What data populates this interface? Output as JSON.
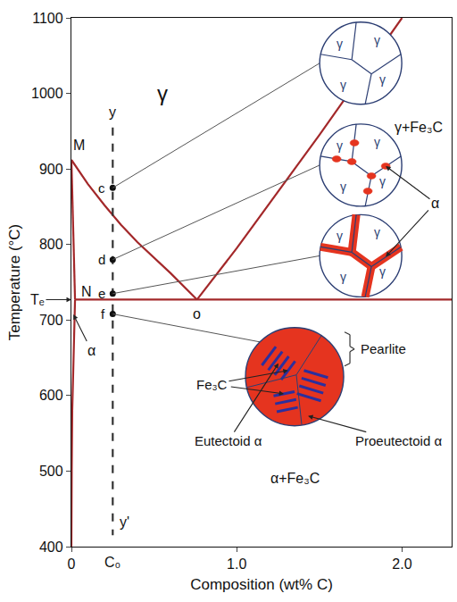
{
  "chart_data": {
    "type": "line",
    "x_label": "Composition (wt% C)",
    "y_label": "Temperature (°C)",
    "xlim": [
      0,
      2.3
    ],
    "ylim": [
      400,
      1100
    ],
    "xticks": [
      0,
      {
        "value": 1,
        "label": "1.0"
      },
      {
        "value": 2,
        "label": "2.0"
      }
    ],
    "yticks": [
      400,
      500,
      600,
      700,
      800,
      900,
      1000,
      1100
    ],
    "grid": false,
    "color": "#a3282a",
    "series": [
      {
        "x": [
          0,
          0.1,
          0.2,
          0.3,
          0.4,
          0.5,
          0.6,
          0.76
        ],
        "values": [
          912,
          880,
          852,
          826,
          803,
          782,
          762,
          727
        ]
      },
      {
        "x": [
          0.76,
          1.0,
          1.5,
          2.0
        ],
        "values": [
          727,
          795,
          945,
          1100
        ]
      },
      {
        "x": [
          0,
          0.022
        ],
        "values": [
          912,
          727
        ]
      },
      {
        "x": [
          0.022,
          0.012,
          0.005,
          0.002,
          0
        ],
        "values": [
          727,
          650,
          580,
          500,
          400
        ]
      },
      {
        "x": [
          0.022,
          2.3
        ],
        "values": [
          727,
          727
        ]
      },
      {
        "x": [
          0.25,
          0.25
        ],
        "values": [
          955,
          415
        ],
        "color": "#333333",
        "line_style": "dashed"
      }
    ],
    "points": {
      "x": [
        0.25,
        0.25,
        0.25,
        0.25
      ],
      "values": [
        875,
        780,
        735,
        708
      ],
      "color": "#111111",
      "marker": "circle",
      "labels": [
        "c",
        "d",
        "e",
        "f"
      ]
    },
    "annotations": [
      {
        "text": "γ",
        "x": 0.55,
        "y": 1000
      },
      {
        "text": "γ+Fe₃C",
        "x": 2.1,
        "y": 955
      },
      {
        "text": "α+Fe₃C",
        "x": 1.35,
        "y": 490
      },
      {
        "text": "M",
        "x": 0.045,
        "y": 932
      },
      {
        "text": "N",
        "x": 0.09,
        "y": 737
      },
      {
        "text": "o",
        "x": 0.76,
        "y": 708
      },
      {
        "text": "y",
        "x": 0.25,
        "y": 975
      },
      {
        "text": "y'",
        "x": 0.32,
        "y": 432
      }
    ],
    "te": {
      "text": "Tₑ",
      "y": 727
    },
    "c0": {
      "text": "C₀",
      "x": 0.25
    },
    "alpha_phase": {
      "text": "α",
      "x": 0.12,
      "y": 660
    },
    "microstructures": [
      {
        "x": 1.75,
        "y": 1040,
        "grain_labels": [
          "γ",
          "γ",
          "γ",
          "γ"
        ]
      },
      {
        "x": 1.75,
        "y": 905,
        "grain_labels": [
          "γ",
          "γ",
          "γ",
          "γ"
        ]
      },
      {
        "x": 1.75,
        "y": 785,
        "grain_labels": [
          "γ",
          "γ",
          "γ",
          "γ"
        ]
      },
      {
        "x": 1.35,
        "y": 625
      }
    ],
    "alpha_label": {
      "text": "α",
      "x": 2.2,
      "y": 855
    },
    "pearlite": {
      "text": "Pearlite"
    },
    "fe3c_label": {
      "text": "Fe₃C",
      "x": 0.85,
      "y": 615
    },
    "eutectoid_alpha": {
      "text": "Eutectoid α",
      "x": 0.95,
      "y": 540
    },
    "proeutectoid_alpha": {
      "text": "Proeutectoid α",
      "x": 1.98,
      "y": 540
    }
  }
}
